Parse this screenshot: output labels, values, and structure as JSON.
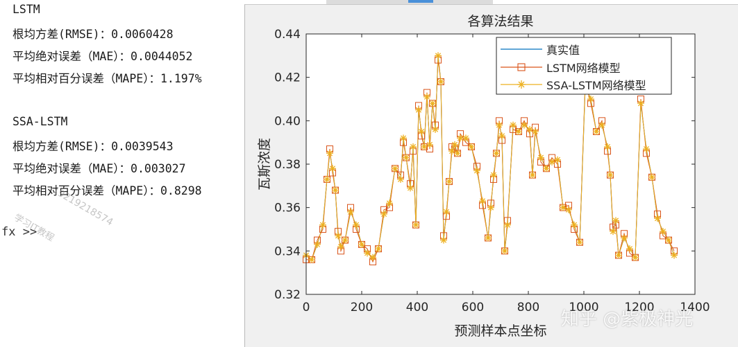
{
  "console": {
    "lines": [
      "LSTM",
      "根均方差(RMSE)：0.0060428",
      "平均绝对误差（MAE）：0.0044052",
      "平均相对百分误差（MAPE）：1.197%",
      "SSA-LSTM",
      "根均方差(RMSE)：0.0039543",
      "平均绝对误差（MAE）：0.003027",
      "平均相对百分误差（MAPE）：0.8298"
    ],
    "prompt": "fx >>"
  },
  "watermark": {
    "main": "知乎 @紫极神光",
    "diag1": "19219218574",
    "diag2": "学习IT教程"
  },
  "colors": {
    "true_line": "#0072BD",
    "lstm": "#D95319",
    "ssa": "#EDB120"
  },
  "chart_data": {
    "type": "line",
    "title": "各算法结果",
    "xlabel": "预测样本点坐标",
    "ylabel": "瓦斯浓度",
    "xlim": [
      0,
      1400
    ],
    "ylim": [
      0.32,
      0.44
    ],
    "xticks": [
      0,
      200,
      400,
      600,
      800,
      1000,
      1200,
      1400
    ],
    "yticks": [
      0.32,
      0.34,
      0.36,
      0.38,
      0.4,
      0.42,
      0.44
    ],
    "legend_position": "top-right",
    "series": [
      {
        "name": "真实值",
        "marker": "none"
      },
      {
        "name": "LSTM网络模型",
        "marker": "square"
      },
      {
        "name": "SSA-LSTM网络模型",
        "marker": "asterisk"
      }
    ],
    "x": [
      0,
      20,
      40,
      60,
      75,
      85,
      95,
      105,
      115,
      125,
      140,
      160,
      180,
      200,
      220,
      240,
      260,
      280,
      300,
      320,
      340,
      350,
      360,
      375,
      385,
      395,
      405,
      415,
      425,
      435,
      445,
      455,
      465,
      475,
      485,
      495,
      505,
      515,
      525,
      535,
      545,
      555,
      575,
      595,
      615,
      635,
      655,
      665,
      675,
      685,
      695,
      705,
      715,
      725,
      745,
      765,
      785,
      805,
      815,
      825,
      845,
      865,
      885,
      905,
      925,
      945,
      965,
      985,
      1005,
      1025,
      1045,
      1065,
      1085,
      1095,
      1105,
      1115,
      1125,
      1145,
      1165,
      1185,
      1205,
      1225,
      1245,
      1265,
      1285,
      1305,
      1325
    ],
    "values": [
      0.338,
      0.336,
      0.343,
      0.352,
      0.373,
      0.385,
      0.378,
      0.368,
      0.347,
      0.342,
      0.345,
      0.358,
      0.352,
      0.343,
      0.339,
      0.337,
      0.341,
      0.357,
      0.362,
      0.378,
      0.373,
      0.392,
      0.383,
      0.369,
      0.388,
      0.352,
      0.405,
      0.395,
      0.388,
      0.411,
      0.389,
      0.408,
      0.396,
      0.43,
      0.418,
      0.345,
      0.358,
      0.372,
      0.386,
      0.389,
      0.385,
      0.392,
      0.392,
      0.388,
      0.377,
      0.363,
      0.346,
      0.36,
      0.375,
      0.385,
      0.398,
      0.393,
      0.34,
      0.352,
      0.398,
      0.395,
      0.398,
      0.396,
      0.375,
      0.395,
      0.383,
      0.378,
      0.381,
      0.382,
      0.36,
      0.359,
      0.352,
      0.344,
      0.416,
      0.41,
      0.395,
      0.398,
      0.388,
      0.375,
      0.349,
      0.354,
      0.338,
      0.346,
      0.341,
      0.337,
      0.408,
      0.387,
      0.374,
      0.355,
      0.349,
      0.345,
      0.338
    ]
  }
}
